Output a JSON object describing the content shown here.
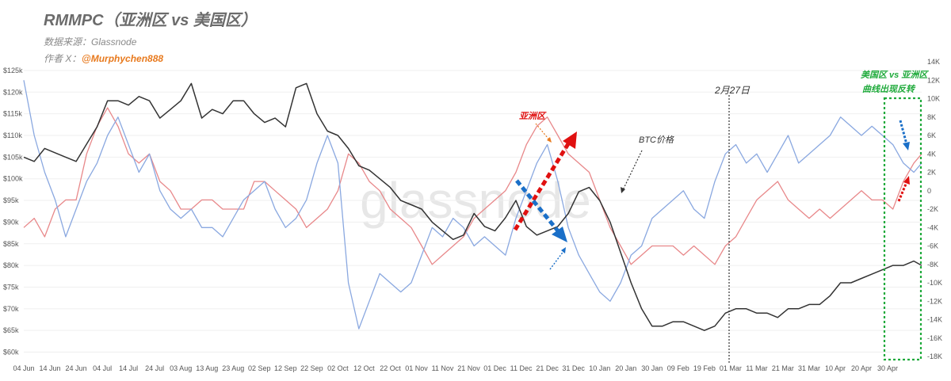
{
  "header": {
    "title": "RMMPC（亚洲区 vs 美国区）",
    "source": "数据来源：Glassnode",
    "author_prefix": "作者 X：",
    "author_handle": "@Murphychen888"
  },
  "watermark": "glassnode",
  "colors": {
    "btc": "#333333",
    "asia": "#e8888a",
    "us": "#8aa8e0",
    "author": "#e87a1e",
    "green": "#1faa3b",
    "red": "#e01010",
    "blue": "#1a6fc8"
  },
  "chart_data": {
    "type": "line",
    "x_ticks": [
      "04 Jun",
      "14 Jun",
      "24 Jun",
      "04 Jul",
      "14 Jul",
      "24 Jul",
      "03 Aug",
      "13 Aug",
      "23 Aug",
      "02 Sep",
      "12 Sep",
      "22 Sep",
      "02 Oct",
      "12 Oct",
      "22 Oct",
      "01 Nov",
      "11 Nov",
      "21 Nov",
      "01 Dec",
      "11 Dec",
      "21 Dec",
      "31 Dec",
      "10 Jan",
      "20 Jan",
      "30 Jan",
      "09 Feb",
      "19 Feb",
      "01 Mar",
      "11 Mar",
      "21 Mar",
      "31 Mar",
      "10 Apr",
      "20 Apr",
      "30 Apr"
    ],
    "y_left_ticks": [
      "$60k",
      "$65k",
      "$70k",
      "$75k",
      "$80k",
      "$85k",
      "$90k",
      "$95k",
      "$100k",
      "$105k",
      "$110k",
      "$115k",
      "$120k",
      "$125k"
    ],
    "y_right_ticks": [
      "-18K",
      "-16K",
      "-14K",
      "-12K",
      "-10K",
      "-8K",
      "-6K",
      "-4K",
      "-2K",
      "0",
      "2K",
      "4K",
      "6K",
      "8K",
      "10K",
      "12K",
      "14K"
    ],
    "y_left_range": [
      59000,
      127000
    ],
    "y_right_range": [
      -18000,
      14000
    ],
    "series": [
      {
        "name": "BTC价格",
        "axis": "left",
        "x": [
          0,
          4,
          8,
          12,
          16,
          20,
          24,
          28,
          32,
          36,
          40,
          44,
          48,
          52,
          56,
          60,
          64,
          68,
          72,
          76,
          80,
          84,
          88,
          92,
          96,
          100,
          104,
          108,
          112,
          116,
          120,
          124,
          128,
          132,
          136,
          140,
          144,
          148,
          152,
          156,
          160,
          164,
          168,
          172,
          176,
          180,
          184,
          188,
          192,
          196,
          200,
          204,
          208,
          212,
          216,
          220,
          224,
          228,
          232,
          236,
          240,
          244,
          248,
          252,
          256,
          260,
          264,
          268,
          272,
          276,
          280,
          284,
          288,
          292,
          296,
          300,
          304,
          308,
          312,
          316,
          320,
          324,
          328,
          332,
          336,
          340,
          343
        ],
        "values": [
          105,
          104,
          107,
          106,
          105,
          104,
          108,
          112,
          118,
          118,
          117,
          119,
          118,
          114,
          116,
          118,
          122,
          114,
          116,
          115,
          118,
          118,
          115,
          113,
          114,
          112,
          121,
          122,
          115,
          111,
          110,
          107,
          103,
          102,
          100,
          98,
          95,
          94,
          93,
          90,
          88,
          86,
          87,
          92,
          89,
          88,
          91,
          95,
          89,
          87,
          88,
          89,
          92,
          97,
          98,
          95,
          90,
          83,
          76,
          70,
          66,
          66,
          67,
          67,
          66,
          65,
          66,
          69,
          70,
          70,
          69,
          69,
          68,
          70,
          70,
          71,
          71,
          73,
          76,
          76,
          77,
          78,
          79,
          80,
          80,
          81,
          80
        ]
      },
      {
        "name": "亚洲区",
        "axis": "right",
        "x": [
          0,
          4,
          8,
          12,
          16,
          20,
          24,
          28,
          32,
          36,
          40,
          44,
          48,
          52,
          56,
          60,
          64,
          68,
          72,
          76,
          80,
          84,
          88,
          92,
          96,
          100,
          104,
          108,
          112,
          116,
          120,
          124,
          128,
          132,
          136,
          140,
          144,
          148,
          152,
          156,
          160,
          164,
          168,
          172,
          176,
          180,
          184,
          188,
          192,
          196,
          200,
          204,
          208,
          212,
          216,
          220,
          224,
          228,
          232,
          236,
          240,
          244,
          248,
          252,
          256,
          260,
          264,
          268,
          272,
          276,
          280,
          284,
          288,
          292,
          296,
          300,
          304,
          308,
          312,
          316,
          320,
          324,
          328,
          332,
          336,
          340,
          343
        ],
        "values": [
          -4,
          -3,
          -5,
          -2,
          -1,
          -1,
          4,
          7,
          9,
          7,
          4,
          3,
          4,
          1,
          0,
          -2,
          -2,
          -1,
          -1,
          -2,
          -2,
          -2,
          1,
          1,
          0,
          -1,
          -2,
          -4,
          -3,
          -2,
          0,
          4,
          3,
          1,
          0,
          -2,
          -3,
          -4,
          -6,
          -8,
          -7,
          -6,
          -5,
          -3,
          -2,
          -1,
          0,
          2,
          5,
          7,
          8,
          6,
          4,
          3,
          2,
          -1,
          -4,
          -6,
          -8,
          -7,
          -6,
          -6,
          -6,
          -7,
          -6,
          -7,
          -8,
          -6,
          -5,
          -3,
          -1,
          0,
          1,
          -1,
          -2,
          -3,
          -2,
          -3,
          -2,
          -1,
          0,
          -1,
          -1,
          -2,
          1,
          3,
          4
        ]
      },
      {
        "name": "美国区",
        "axis": "right",
        "x": [
          0,
          4,
          8,
          12,
          16,
          20,
          24,
          28,
          32,
          36,
          40,
          44,
          48,
          52,
          56,
          60,
          64,
          68,
          72,
          76,
          80,
          84,
          88,
          92,
          96,
          100,
          104,
          108,
          112,
          116,
          120,
          124,
          128,
          132,
          136,
          140,
          144,
          148,
          152,
          156,
          160,
          164,
          168,
          172,
          176,
          180,
          184,
          188,
          192,
          196,
          200,
          204,
          208,
          212,
          216,
          220,
          224,
          228,
          232,
          236,
          240,
          244,
          248,
          252,
          256,
          260,
          264,
          268,
          272,
          276,
          280,
          284,
          288,
          292,
          296,
          300,
          304,
          308,
          312,
          316,
          320,
          324,
          328,
          332,
          336,
          340,
          343
        ],
        "values": [
          12,
          6,
          2,
          -1,
          -5,
          -2,
          1,
          3,
          6,
          8,
          5,
          2,
          4,
          0,
          -2,
          -3,
          -2,
          -4,
          -4,
          -5,
          -3,
          -1,
          0,
          1,
          -2,
          -4,
          -3,
          -1,
          3,
          6,
          3,
          -10,
          -15,
          -12,
          -9,
          -10,
          -11,
          -10,
          -7,
          -4,
          -5,
          -3,
          -4,
          -6,
          -5,
          -6,
          -7,
          -3,
          0,
          3,
          5,
          1,
          -4,
          -7,
          -9,
          -11,
          -12,
          -10,
          -7,
          -6,
          -3,
          -2,
          -1,
          0,
          -2,
          -3,
          1,
          4,
          5,
          3,
          4,
          2,
          4,
          6,
          3,
          4,
          5,
          6,
          8,
          7,
          6,
          7,
          6,
          5,
          3,
          2,
          3
        ]
      }
    ],
    "annotations": {
      "asia_label": "亚洲区",
      "btc_label": "BTC价格",
      "date_label": "2月27日",
      "box_label_line1": "美国区 vs 亚洲区",
      "box_label_line2": "曲线出现反转"
    },
    "grid": true
  }
}
